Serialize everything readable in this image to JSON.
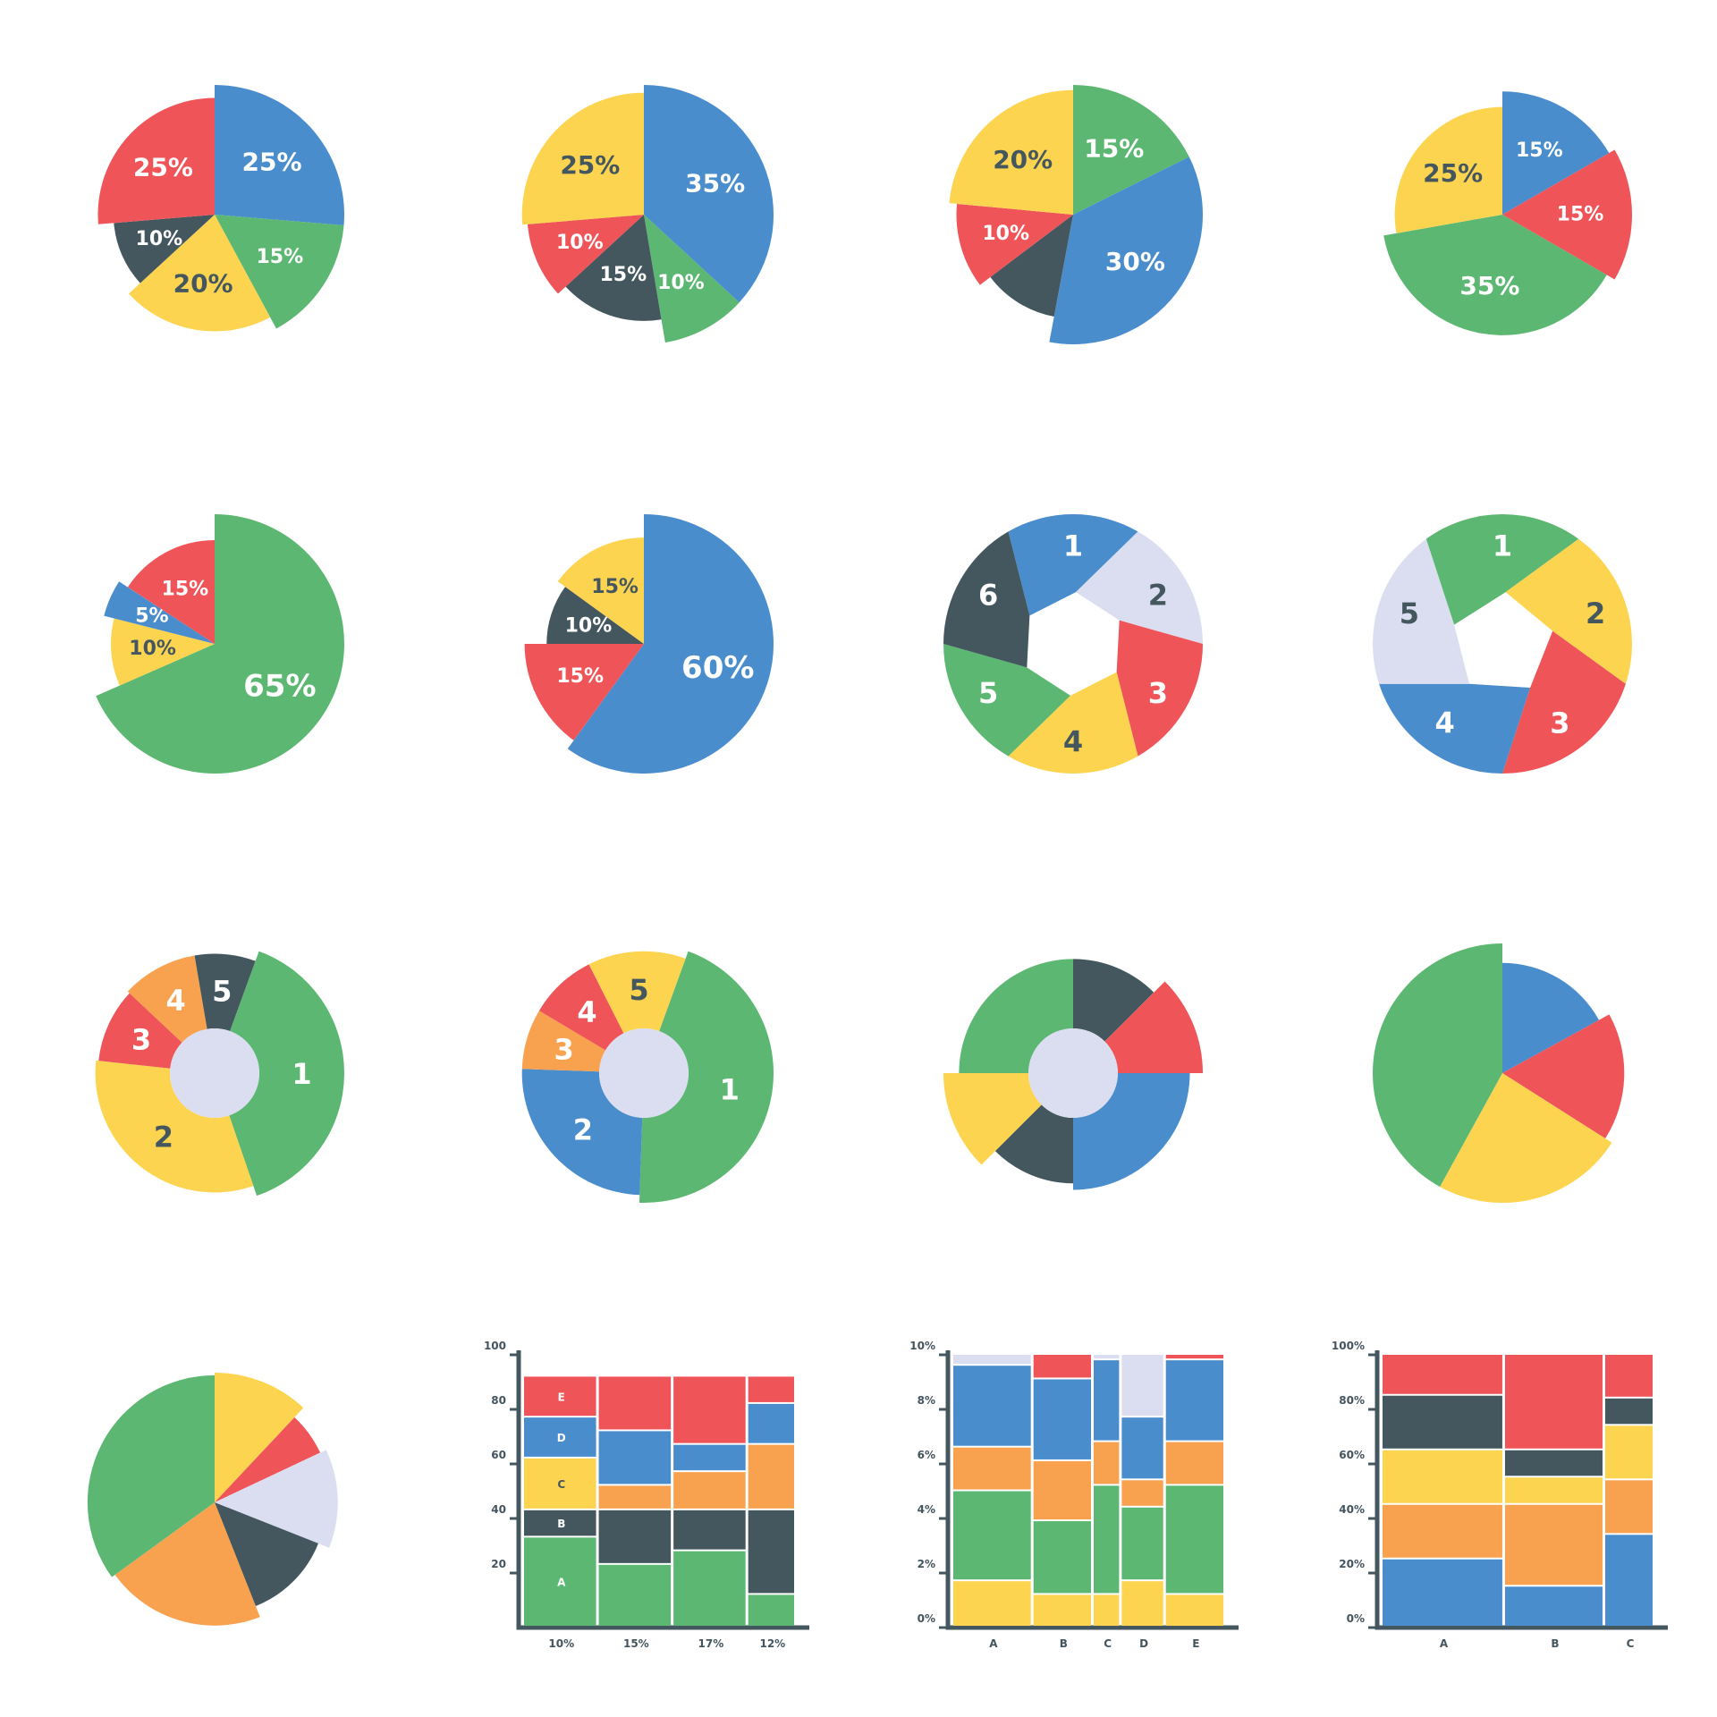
{
  "colors": {
    "blue": "#4a8dcc",
    "red": "#ef5459",
    "yellow": "#fdd44f",
    "green": "#5cb772",
    "dark": "#44575f",
    "orange": "#f8a24f",
    "lavender": "#dbdef0"
  },
  "chart_data": [
    {
      "type": "pie",
      "slices": [
        {
          "label": "25%",
          "value": 25,
          "color": "blue",
          "r": 1.0
        },
        {
          "label": "15%",
          "value": 15,
          "color": "green",
          "r": 1.0
        },
        {
          "label": "20%",
          "value": 20,
          "color": "yellow",
          "r": 0.9
        },
        {
          "label": "10%",
          "value": 10,
          "color": "dark",
          "r": 0.78
        },
        {
          "label": "25%",
          "value": 25,
          "color": "red",
          "r": 0.9
        }
      ]
    },
    {
      "type": "pie",
      "slices": [
        {
          "label": "35%",
          "value": 35,
          "color": "blue",
          "r": 1.0
        },
        {
          "label": "10%",
          "value": 10,
          "color": "green",
          "r": 1.0
        },
        {
          "label": "15%",
          "value": 15,
          "color": "dark",
          "r": 0.82
        },
        {
          "label": "10%",
          "value": 10,
          "color": "red",
          "r": 0.9
        },
        {
          "label": "25%",
          "value": 25,
          "color": "yellow",
          "r": 0.94
        }
      ]
    },
    {
      "type": "pie",
      "slices": [
        {
          "label": "15%",
          "value": 15,
          "color": "green",
          "r": 1.0
        },
        {
          "label": "30%",
          "value": 30,
          "color": "blue",
          "r": 1.0
        },
        {
          "label": "",
          "value": 10,
          "color": "dark",
          "r": 0.8
        },
        {
          "label": "10%",
          "value": 10,
          "color": "red",
          "r": 0.9
        },
        {
          "label": "20%",
          "value": 20,
          "color": "yellow",
          "r": 0.96
        }
      ]
    },
    {
      "type": "pie",
      "slices": [
        {
          "label": "15%",
          "value": 15,
          "color": "blue",
          "r": 0.95
        },
        {
          "label": "15%",
          "value": 15,
          "color": "red",
          "r": 1.0
        },
        {
          "label": "35%",
          "value": 35,
          "color": "green",
          "r": 0.93
        },
        {
          "label": "25%",
          "value": 25,
          "color": "yellow",
          "r": 0.83
        }
      ]
    },
    {
      "type": "pie",
      "slices": [
        {
          "label": "65%",
          "value": 65,
          "color": "green",
          "r": 1.0
        },
        {
          "label": "10%",
          "value": 10,
          "color": "yellow",
          "r": 0.8
        },
        {
          "label": "5%",
          "value": 5,
          "color": "blue",
          "r": 0.88
        },
        {
          "label": "15%",
          "value": 15,
          "color": "red",
          "r": 0.8
        }
      ]
    },
    {
      "type": "pie",
      "slices": [
        {
          "label": "60%",
          "value": 60,
          "color": "blue",
          "r": 1.0
        },
        {
          "label": "15%",
          "value": 15,
          "color": "red",
          "r": 0.92
        },
        {
          "label": "10%",
          "value": 10,
          "color": "dark",
          "r": 0.75
        },
        {
          "label": "15%",
          "value": 15,
          "color": "yellow",
          "r": 0.82
        }
      ]
    },
    {
      "type": "pie",
      "style": "hexagon",
      "slices": [
        {
          "label": "1",
          "value": 1,
          "color": "blue"
        },
        {
          "label": "2",
          "value": 1,
          "color": "lavender"
        },
        {
          "label": "3",
          "value": 1,
          "color": "red"
        },
        {
          "label": "4",
          "value": 1,
          "color": "yellow"
        },
        {
          "label": "5",
          "value": 1,
          "color": "green"
        },
        {
          "label": "6",
          "value": 1,
          "color": "dark"
        }
      ]
    },
    {
      "type": "pie",
      "style": "pentagon",
      "slices": [
        {
          "label": "1",
          "value": 1,
          "color": "green"
        },
        {
          "label": "2",
          "value": 1,
          "color": "yellow"
        },
        {
          "label": "3",
          "value": 1,
          "color": "red"
        },
        {
          "label": "4",
          "value": 1,
          "color": "blue"
        },
        {
          "label": "5",
          "value": 1,
          "color": "lavender"
        }
      ]
    },
    {
      "type": "pie",
      "style": "donut",
      "start": 20,
      "slices": [
        {
          "label": "1",
          "value": 38,
          "color": "green",
          "r": 1.0
        },
        {
          "label": "2",
          "value": 31,
          "color": "yellow",
          "r": 0.92
        },
        {
          "label": "3",
          "value": 10,
          "color": "red",
          "r": 0.9
        },
        {
          "label": "4",
          "value": 10,
          "color": "orange",
          "r": 0.92
        },
        {
          "label": "5",
          "value": 8,
          "color": "dark",
          "r": 0.92
        }
      ]
    },
    {
      "type": "pie",
      "style": "donut",
      "start": 20,
      "slices": [
        {
          "label": "1",
          "value": 45,
          "color": "green",
          "r": 1.0
        },
        {
          "label": "2",
          "value": 25,
          "color": "blue",
          "r": 0.94
        },
        {
          "label": "3",
          "value": 8,
          "color": "orange",
          "r": 0.94
        },
        {
          "label": "4",
          "value": 9,
          "color": "red",
          "r": 0.94
        },
        {
          "label": "5",
          "value": 13,
          "color": "yellow",
          "r": 0.94
        }
      ]
    },
    {
      "type": "pie",
      "style": "donut",
      "slices": [
        {
          "label": "",
          "value": 12.5,
          "color": "dark",
          "r": 0.88
        },
        {
          "label": "",
          "value": 12.5,
          "color": "red",
          "r": 1.0
        },
        {
          "label": "",
          "value": 25,
          "color": "blue",
          "r": 0.9
        },
        {
          "label": "",
          "value": 12.5,
          "color": "dark",
          "r": 0.85
        },
        {
          "label": "",
          "value": 12.5,
          "color": "yellow",
          "r": 1.0
        },
        {
          "label": "",
          "value": 25,
          "color": "green",
          "r": 0.88
        }
      ]
    },
    {
      "type": "pie",
      "slices": [
        {
          "label": "",
          "value": 17,
          "color": "blue",
          "r": 0.85
        },
        {
          "label": "",
          "value": 17,
          "color": "red",
          "r": 0.94
        },
        {
          "label": "",
          "value": 24,
          "color": "yellow",
          "r": 1.0
        },
        {
          "label": "",
          "value": 42,
          "color": "green",
          "r": 1.0
        }
      ]
    },
    {
      "type": "pie",
      "slices": [
        {
          "label": "",
          "value": 12,
          "color": "yellow",
          "r": 1.0
        },
        {
          "label": "",
          "value": 6,
          "color": "red",
          "r": 0.9
        },
        {
          "label": "",
          "value": 13,
          "color": "lavender",
          "r": 0.95
        },
        {
          "label": "",
          "value": 13,
          "color": "dark",
          "r": 0.86
        },
        {
          "label": "",
          "value": 21,
          "color": "orange",
          "r": 0.95
        },
        {
          "label": "",
          "value": 35,
          "color": "green",
          "r": 0.98
        }
      ]
    },
    {
      "type": "bar",
      "style": "marimekko",
      "ylim": [
        0,
        100
      ],
      "yticks": [
        "20",
        "40",
        "60",
        "80",
        "100"
      ],
      "y_tick_values": [
        20,
        40,
        60,
        80,
        100
      ],
      "columns": [
        {
          "label": "10%",
          "width": 10,
          "segments": [
            {
              "name": "A",
              "value": 33,
              "color": "green"
            },
            {
              "name": "B",
              "value": 10,
              "color": "dark"
            },
            {
              "name": "C",
              "value": 19,
              "color": "yellow"
            },
            {
              "name": "D",
              "value": 15,
              "color": "blue"
            },
            {
              "name": "E",
              "value": 15,
              "color": "red"
            }
          ]
        },
        {
          "label": "15%",
          "width": 10,
          "segments": [
            {
              "name": "",
              "value": 23,
              "color": "green"
            },
            {
              "name": "",
              "value": 20,
              "color": "dark"
            },
            {
              "name": "",
              "value": 9,
              "color": "orange"
            },
            {
              "name": "",
              "value": 20,
              "color": "blue"
            },
            {
              "name": "",
              "value": 20,
              "color": "red"
            }
          ]
        },
        {
          "label": "17%",
          "width": 10,
          "segments": [
            {
              "name": "",
              "value": 28,
              "color": "green"
            },
            {
              "name": "",
              "value": 15,
              "color": "dark"
            },
            {
              "name": "",
              "value": 14,
              "color": "orange"
            },
            {
              "name": "",
              "value": 10,
              "color": "blue"
            },
            {
              "name": "",
              "value": 25,
              "color": "red"
            }
          ]
        },
        {
          "label": "12%",
          "width": 6.5,
          "segments": [
            {
              "name": "",
              "value": 12,
              "color": "green"
            },
            {
              "name": "",
              "value": 31,
              "color": "dark"
            },
            {
              "name": "",
              "value": 24,
              "color": "orange"
            },
            {
              "name": "",
              "value": 15,
              "color": "blue"
            },
            {
              "name": "",
              "value": 10,
              "color": "red"
            }
          ]
        }
      ]
    },
    {
      "type": "bar",
      "style": "marimekko",
      "ylim": [
        0,
        10
      ],
      "yticks": [
        "0%",
        "2%",
        "4%",
        "6%",
        "8%",
        "10%"
      ],
      "y_tick_values": [
        0,
        2,
        4,
        6,
        8,
        10
      ],
      "columns": [
        {
          "label": "A",
          "width": 10,
          "segments": [
            {
              "name": "",
              "value": 1.7,
              "color": "yellow"
            },
            {
              "name": "",
              "value": 3.3,
              "color": "green"
            },
            {
              "name": "",
              "value": 1.6,
              "color": "orange"
            },
            {
              "name": "",
              "value": 3.0,
              "color": "blue"
            },
            {
              "name": "",
              "value": 1.2,
              "color": "lavender"
            }
          ]
        },
        {
          "label": "B",
          "width": 7.5,
          "segments": [
            {
              "name": "",
              "value": 1.2,
              "color": "yellow"
            },
            {
              "name": "",
              "value": 2.7,
              "color": "green"
            },
            {
              "name": "",
              "value": 2.2,
              "color": "orange"
            },
            {
              "name": "",
              "value": 3.0,
              "color": "blue"
            },
            {
              "name": "",
              "value": 1.8,
              "color": "red"
            }
          ]
        },
        {
          "label": "C",
          "width": 3.5,
          "segments": [
            {
              "name": "",
              "value": 1.2,
              "color": "yellow"
            },
            {
              "name": "",
              "value": 4.0,
              "color": "green"
            },
            {
              "name": "",
              "value": 1.6,
              "color": "orange"
            },
            {
              "name": "",
              "value": 3.0,
              "color": "blue"
            },
            {
              "name": "",
              "value": 1.2,
              "color": "lavender"
            }
          ]
        },
        {
          "label": "D",
          "width": 5.5,
          "segments": [
            {
              "name": "",
              "value": 1.7,
              "color": "yellow"
            },
            {
              "name": "",
              "value": 2.7,
              "color": "green"
            },
            {
              "name": "",
              "value": 1.0,
              "color": "orange"
            },
            {
              "name": "",
              "value": 2.3,
              "color": "blue"
            },
            {
              "name": "",
              "value": 3.2,
              "color": "lavender"
            }
          ]
        },
        {
          "label": "E",
          "width": 7.5,
          "segments": [
            {
              "name": "",
              "value": 1.2,
              "color": "yellow"
            },
            {
              "name": "",
              "value": 4.0,
              "color": "green"
            },
            {
              "name": "",
              "value": 1.6,
              "color": "orange"
            },
            {
              "name": "",
              "value": 3.0,
              "color": "blue"
            },
            {
              "name": "",
              "value": 1.1,
              "color": "red"
            }
          ]
        }
      ]
    },
    {
      "type": "bar",
      "style": "marimekko",
      "ylim": [
        0,
        100
      ],
      "yticks": [
        "0%",
        "20%",
        "40%",
        "60%",
        "80%",
        "100%"
      ],
      "y_tick_values": [
        0,
        20,
        40,
        60,
        80,
        100
      ],
      "columns": [
        {
          "label": "A",
          "width": 11,
          "segments": [
            {
              "name": "",
              "value": 25,
              "color": "blue"
            },
            {
              "name": "",
              "value": 20,
              "color": "orange"
            },
            {
              "name": "",
              "value": 20,
              "color": "yellow"
            },
            {
              "name": "",
              "value": 20,
              "color": "dark"
            },
            {
              "name": "",
              "value": 20,
              "color": "red"
            }
          ]
        },
        {
          "label": "B",
          "width": 9,
          "segments": [
            {
              "name": "",
              "value": 15,
              "color": "blue"
            },
            {
              "name": "",
              "value": 30,
              "color": "orange"
            },
            {
              "name": "",
              "value": 10,
              "color": "yellow"
            },
            {
              "name": "",
              "value": 10,
              "color": "dark"
            },
            {
              "name": "",
              "value": 38,
              "color": "red"
            }
          ]
        },
        {
          "label": "C",
          "width": 4.5,
          "segments": [
            {
              "name": "",
              "value": 34,
              "color": "blue"
            },
            {
              "name": "",
              "value": 20,
              "color": "orange"
            },
            {
              "name": "",
              "value": 20,
              "color": "yellow"
            },
            {
              "name": "",
              "value": 10,
              "color": "dark"
            },
            {
              "name": "",
              "value": 20,
              "color": "red"
            }
          ]
        }
      ]
    }
  ]
}
